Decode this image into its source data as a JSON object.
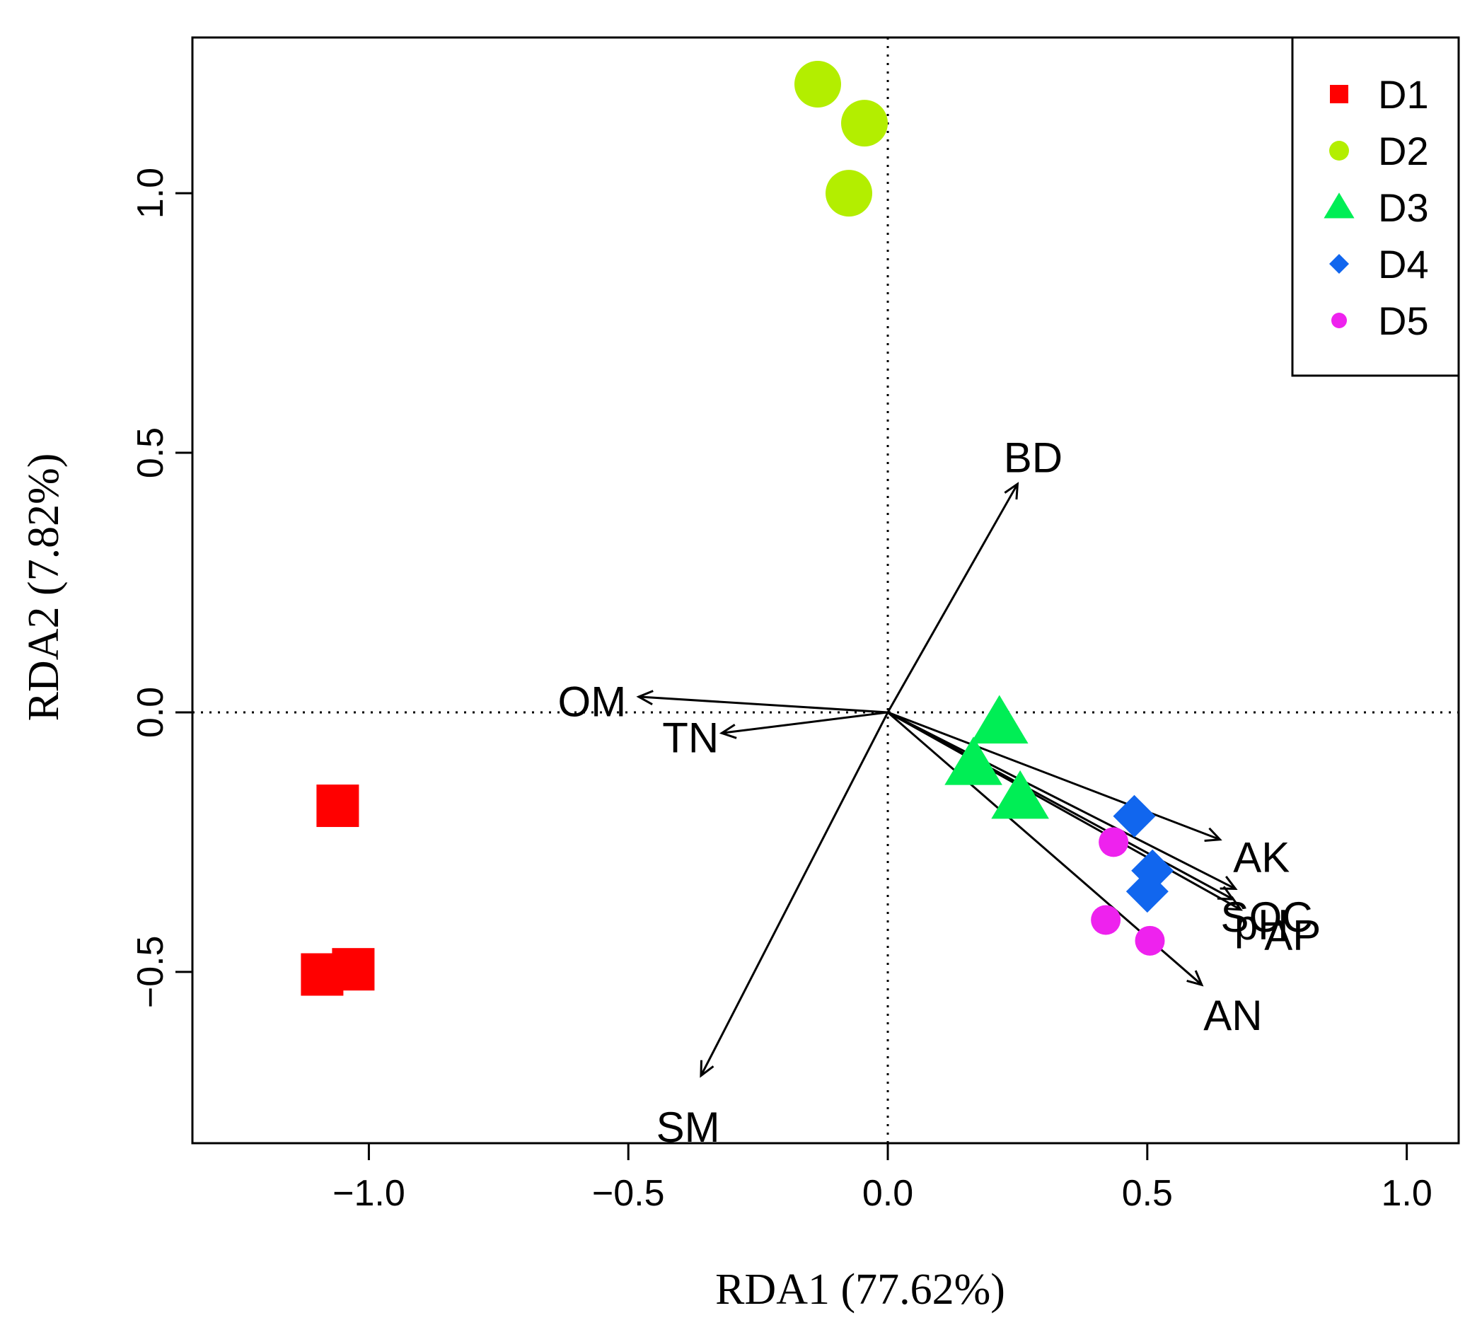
{
  "chart_data": {
    "type": "scatter",
    "subtype": "rda-biplot",
    "title": "",
    "xlabel": "RDA1 (77.62%)",
    "ylabel": "RDA2 (7.82%)",
    "xlim": [
      -1.34,
      1.1
    ],
    "ylim": [
      -0.83,
      1.3
    ],
    "xticks": [
      -1.0,
      -0.5,
      0.0,
      0.5,
      1.0
    ],
    "xtick_labels": [
      "−1.0",
      "−0.5",
      "0.0",
      "0.5",
      "1.0"
    ],
    "yticks": [
      -0.5,
      0.0,
      0.5,
      1.0
    ],
    "ytick_labels": [
      "−0.5",
      "0.0",
      "0.5",
      "1.0"
    ],
    "reference_lines": {
      "x": 0,
      "y": 0,
      "style": "dotted"
    },
    "legend_position": "top-right",
    "series": [
      {
        "name": "D1",
        "marker": "square",
        "color": "#ff0000",
        "points": [
          [
            -1.06,
            -0.18
          ],
          [
            -1.09,
            -0.505
          ],
          [
            -1.03,
            -0.495
          ]
        ]
      },
      {
        "name": "D2",
        "marker": "circle",
        "color": "#b3ee00",
        "points": [
          [
            -0.135,
            1.21
          ],
          [
            -0.045,
            1.135
          ],
          [
            -0.075,
            1.0
          ]
        ]
      },
      {
        "name": "D3",
        "marker": "triangle",
        "color": "#00ee55",
        "points": [
          [
            0.215,
            -0.02
          ],
          [
            0.165,
            -0.1
          ],
          [
            0.255,
            -0.165
          ]
        ]
      },
      {
        "name": "D4",
        "marker": "diamond",
        "color": "#1166ee",
        "points": [
          [
            0.475,
            -0.2
          ],
          [
            0.51,
            -0.305
          ],
          [
            0.5,
            -0.345
          ]
        ]
      },
      {
        "name": "D5",
        "marker": "circle",
        "color": "#ee22ee",
        "points": [
          [
            0.435,
            -0.25
          ],
          [
            0.42,
            -0.4
          ],
          [
            0.505,
            -0.44
          ]
        ]
      }
    ],
    "vectors": [
      {
        "name": "BD",
        "x": 0.25,
        "y": 0.44,
        "label_x": 0.28,
        "label_y": 0.49
      },
      {
        "name": "OM",
        "x": -0.48,
        "y": 0.03,
        "label_x": -0.57,
        "label_y": 0.02
      },
      {
        "name": "TN",
        "x": -0.32,
        "y": -0.04,
        "label_x": -0.38,
        "label_y": -0.05
      },
      {
        "name": "SM",
        "x": -0.36,
        "y": -0.7,
        "label_x": -0.385,
        "label_y": -0.8
      },
      {
        "name": "AK",
        "x": 0.64,
        "y": -0.245,
        "label_x": 0.72,
        "label_y": -0.28
      },
      {
        "name": "SOC",
        "x": 0.67,
        "y": -0.34,
        "label_x": 0.73,
        "label_y": -0.395
      },
      {
        "name": "pH",
        "x": 0.665,
        "y": -0.36,
        "label_x": 0.72,
        "label_y": -0.41
      },
      {
        "name": "AP",
        "x": 0.68,
        "y": -0.38,
        "label_x": 0.78,
        "label_y": -0.43
      },
      {
        "name": "AN",
        "x": 0.605,
        "y": -0.525,
        "label_x": 0.665,
        "label_y": -0.585
      }
    ]
  }
}
